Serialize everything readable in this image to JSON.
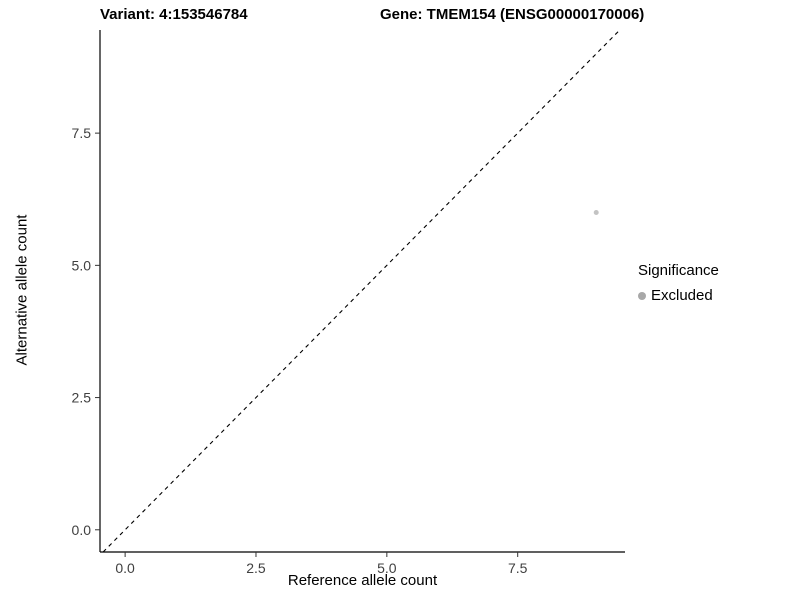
{
  "chart_data": {
    "type": "scatter",
    "title_left": "Variant: 4:153546784",
    "title_right": "Gene: TMEM154 (ENSG00000170006)",
    "xlabel": "Reference allele count",
    "ylabel": "Alternative allele count",
    "xlim": [
      -0.48,
      9.55
    ],
    "ylim": [
      -0.42,
      9.45
    ],
    "xticks": [
      0.0,
      2.5,
      5.0,
      7.5
    ],
    "yticks": [
      0.0,
      2.5,
      5.0,
      7.5
    ],
    "grid": false,
    "reference_line": {
      "type": "identity y = x",
      "style": "dashed",
      "color": "#000000"
    },
    "series": [
      {
        "name": "Excluded",
        "color": "#c3c3c3",
        "point_radius": 2.5,
        "points": [
          {
            "x": 9,
            "y": 6
          }
        ]
      }
    ],
    "legend": {
      "position": "right",
      "title": "Significance",
      "entries": [
        {
          "label": "Excluded",
          "color": "#a8a8a8"
        }
      ]
    }
  }
}
